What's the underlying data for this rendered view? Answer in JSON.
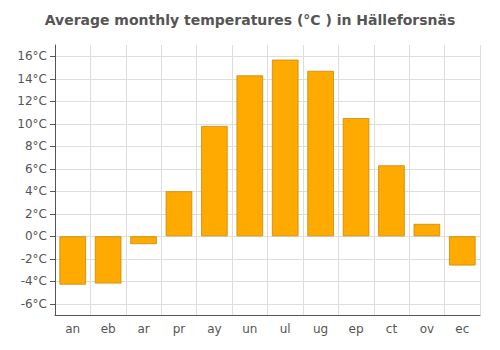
{
  "chart_data": {
    "type": "bar",
    "title": "Average monthly temperatures (°C ) in Hälleforsnäs",
    "categories": [
      "an",
      "eb",
      "ar",
      "pr",
      "ay",
      "un",
      "ul",
      "ug",
      "ep",
      "ct",
      "ov",
      "ec"
    ],
    "values": [
      -4.3,
      -4.2,
      -0.7,
      4.0,
      9.8,
      14.3,
      15.7,
      14.7,
      10.5,
      6.3,
      1.1,
      -2.6
    ],
    "color": "#FFAA00",
    "ylim": [
      -7,
      17
    ],
    "yticks": [
      {
        "value": -6,
        "label": "-6°C"
      },
      {
        "value": -4,
        "label": "-4°C"
      },
      {
        "value": -2,
        "label": "-2°C"
      },
      {
        "value": 0,
        "label": "0°C"
      },
      {
        "value": 2,
        "label": "2°C"
      },
      {
        "value": 4,
        "label": "4°C"
      },
      {
        "value": 6,
        "label": "6°C"
      },
      {
        "value": 8,
        "label": "8°C"
      },
      {
        "value": 10,
        "label": "10°C"
      },
      {
        "value": 12,
        "label": "12°C"
      },
      {
        "value": 14,
        "label": "14°C"
      },
      {
        "value": 16,
        "label": "16°C"
      }
    ],
    "grid": true
  }
}
